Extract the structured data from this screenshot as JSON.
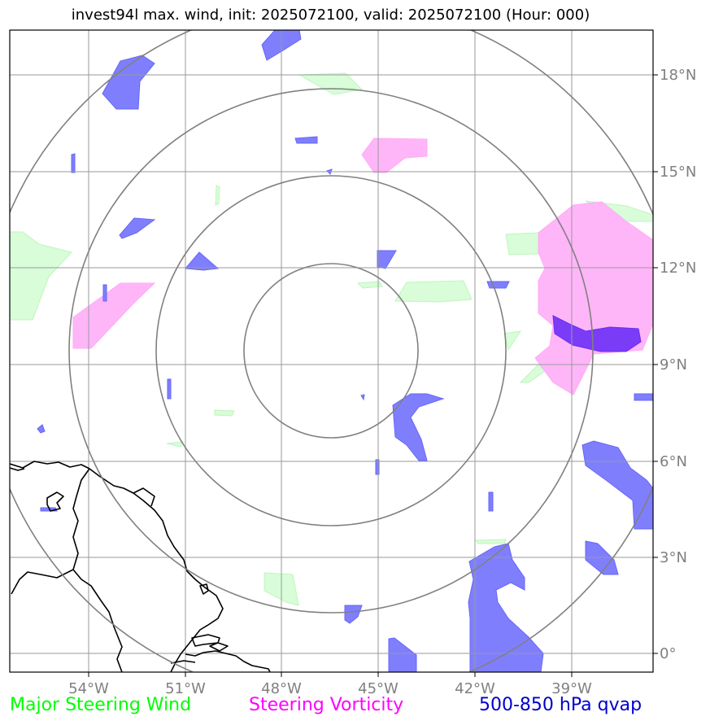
{
  "title": "invest94l max. wind, init: 2025072100, valid: 2025072100 (Hour: 000)",
  "lon_ticks": [
    "54°W",
    "51°W",
    "48°W",
    "45°W",
    "42°W",
    "39°W"
  ],
  "lat_ticks": [
    "18°N",
    "15°N",
    "12°N",
    "9°N",
    "6°N",
    "3°N",
    "0°"
  ],
  "legend": {
    "wind": "Major Steering Wind",
    "vorticity": "Steering Vorticity",
    "qvap": "500-850 hPa qvap"
  },
  "colors": {
    "wind": "#00ff00",
    "vorticity": "#ff00ff",
    "qvap": "#0000cc",
    "grid": "#808080",
    "coast": "#000000"
  },
  "chart_data": {
    "type": "map",
    "projection": "plate carree",
    "lon_range": [
      -56.4,
      -36.4
    ],
    "lat_range": [
      -0.6,
      19.5
    ],
    "range_rings_center": [
      -46.6,
      9.4
    ],
    "range_rings_count": 4,
    "fields": [
      "Major Steering Wind",
      "Steering Vorticity",
      "500-850 hPa qvap"
    ]
  }
}
